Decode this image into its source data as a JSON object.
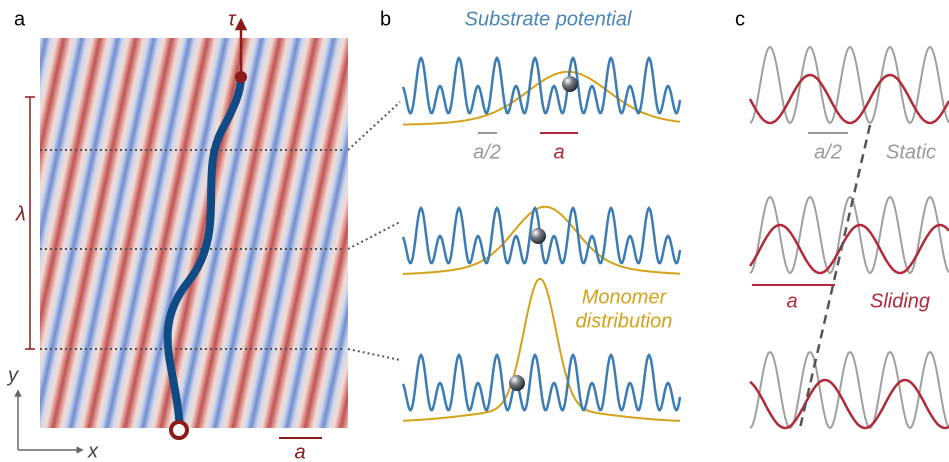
{
  "panels": {
    "a": {
      "letter": "a",
      "force": "τ",
      "wavelength": "λ",
      "y_axis": "y",
      "x_axis": "x",
      "scale": "a"
    },
    "b": {
      "letter": "b",
      "title": "Substrate potential",
      "half_period": "a/2",
      "period": "a",
      "distribution": [
        "Monomer",
        "distribution"
      ]
    },
    "c": {
      "letter": "c",
      "half_period": "a/2",
      "static": "Static",
      "period": "a",
      "sliding": "Sliding"
    }
  }
}
